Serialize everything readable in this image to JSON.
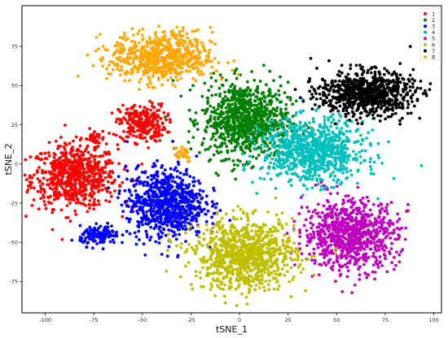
{
  "chart_data": {
    "type": "scatter",
    "title": "",
    "xlabel": "tSNE_1",
    "ylabel": "tSNE_2",
    "xlim": [
      -112,
      104
    ],
    "ylim": [
      -95,
      101
    ],
    "x_ticks": [
      -100,
      -75,
      -50,
      -25,
      0,
      25,
      50,
      75,
      100
    ],
    "y_ticks": [
      -75,
      -50,
      -25,
      0,
      25,
      50,
      75
    ],
    "grid": false,
    "legend_position": "top-right",
    "series": [
      {
        "name": "1",
        "color": "#ff0000",
        "clusters": [
          {
            "cx": -85,
            "cy": -8,
            "sx": 11,
            "sy": 10,
            "n": 700
          },
          {
            "cx": -50,
            "cy": 26,
            "sx": 6,
            "sy": 6,
            "n": 260
          },
          {
            "cx": -75,
            "cy": 16,
            "sx": 3,
            "sy": 3,
            "n": 40
          }
        ]
      },
      {
        "name": "2",
        "color": "#008000",
        "clusters": [
          {
            "cx": 3,
            "cy": 28,
            "sx": 11,
            "sy": 12,
            "n": 900
          }
        ]
      },
      {
        "name": "3",
        "color": "#0000ff",
        "clusters": [
          {
            "cx": -38,
            "cy": -25,
            "sx": 10,
            "sy": 11,
            "n": 800
          },
          {
            "cx": -72,
            "cy": -46,
            "sx": 5,
            "sy": 3,
            "n": 130
          }
        ]
      },
      {
        "name": "4",
        "color": "#00bfbf",
        "clusters": [
          {
            "cx": 38,
            "cy": 8,
            "sx": 13,
            "sy": 10,
            "n": 850
          }
        ]
      },
      {
        "name": "5",
        "color": "#bf00bf",
        "clusters": [
          {
            "cx": 57,
            "cy": -45,
            "sx": 12,
            "sy": 11,
            "n": 850
          }
        ]
      },
      {
        "name": "6",
        "color": "#bfbf00",
        "clusters": [
          {
            "cx": 3,
            "cy": -58,
            "sx": 13,
            "sy": 11,
            "n": 950
          }
        ]
      },
      {
        "name": "7",
        "color": "#000000",
        "clusters": [
          {
            "cx": 65,
            "cy": 45,
            "sx": 12,
            "sy": 7,
            "n": 800
          }
        ]
      },
      {
        "name": "8",
        "color": "#ffa500",
        "clusters": [
          {
            "cx": -40,
            "cy": 68,
            "sx": 13,
            "sy": 8,
            "n": 650
          },
          {
            "cx": -30,
            "cy": 7,
            "sx": 3,
            "sy": 3,
            "n": 30
          }
        ]
      }
    ]
  }
}
